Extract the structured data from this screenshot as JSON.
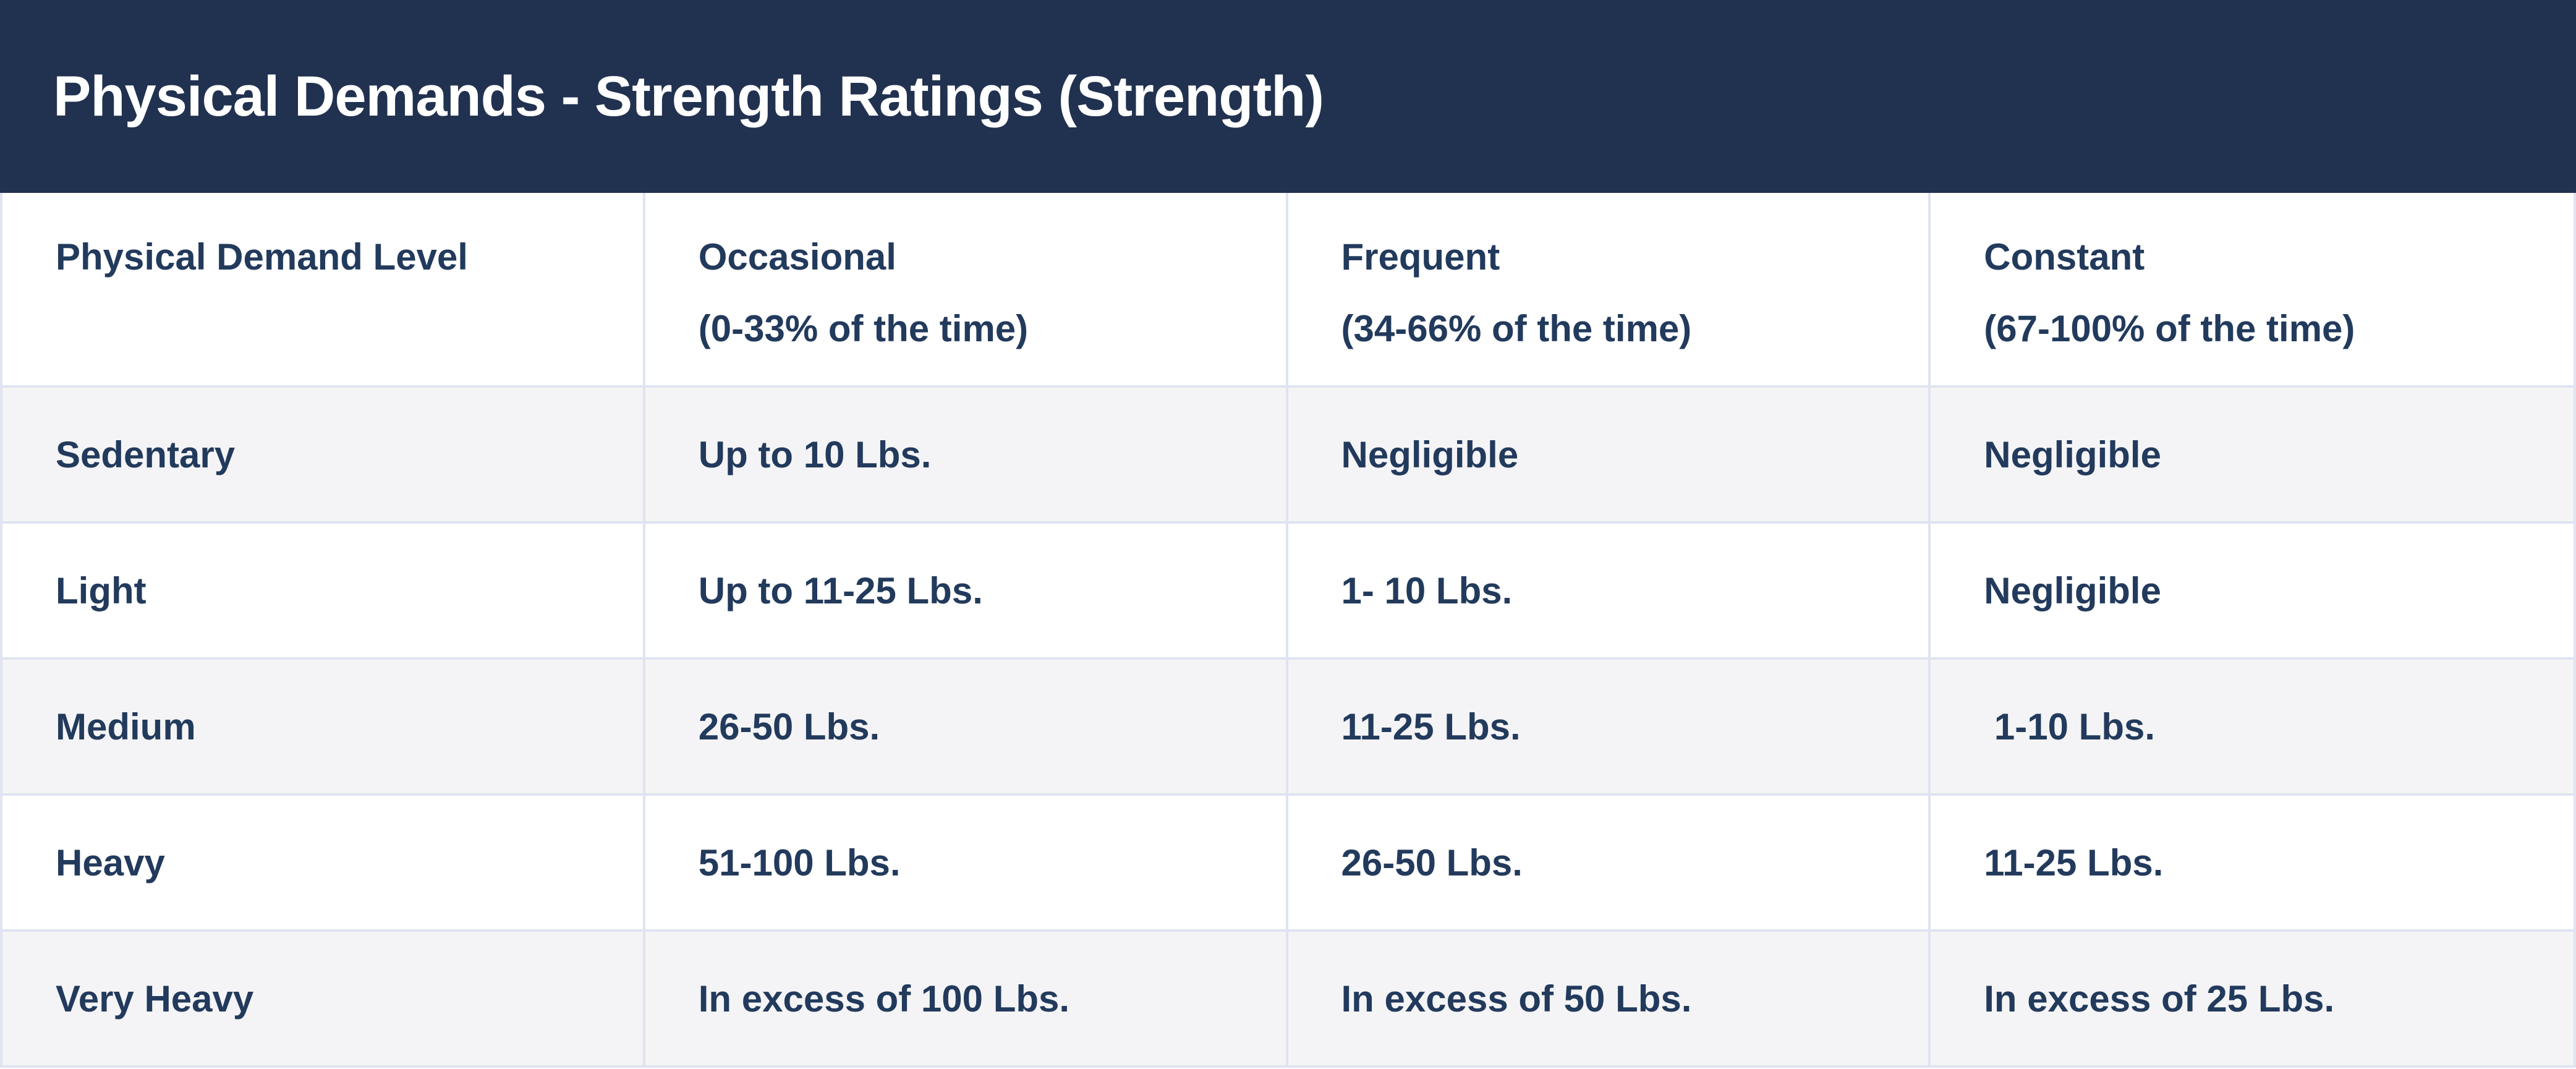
{
  "chart_data": {
    "type": "table",
    "title": "Physical Demands - Strength Ratings (Strength)",
    "columns": [
      {
        "label": "Physical Demand Level",
        "sub": ""
      },
      {
        "label": "Occasional",
        "sub": "(0-33% of the time)"
      },
      {
        "label": "Frequent",
        "sub": "(34-66% of the time)"
      },
      {
        "label": "Constant",
        "sub": "(67-100% of the time)"
      }
    ],
    "rows": [
      [
        "Sedentary",
        "Up to 10 Lbs.",
        "Negligible",
        "Negligible"
      ],
      [
        "Light",
        "Up to 11-25 Lbs.",
        "1- 10 Lbs.",
        "Negligible"
      ],
      [
        "Medium",
        "26-50 Lbs.",
        "11-25 Lbs.",
        " 1-10 Lbs."
      ],
      [
        "Heavy",
        "51-100 Lbs.",
        "26-50 Lbs.",
        "11-25 Lbs."
      ],
      [
        "Very Heavy",
        "In excess of 100 Lbs.",
        "In excess of 50 Lbs.",
        "In excess of 25 Lbs."
      ]
    ],
    "layout": {
      "header_position": "top",
      "row_striping": "odd rows shaded",
      "grid": "light vertical and horizontal dividers"
    }
  },
  "colors": {
    "titlebar_bg": "#213150",
    "titlebar_text": "#ffffff",
    "text": "#223a5c",
    "row_bg": "#ffffff",
    "row_alt_bg": "#f4f4f6",
    "divider": "#dfe4f0"
  }
}
